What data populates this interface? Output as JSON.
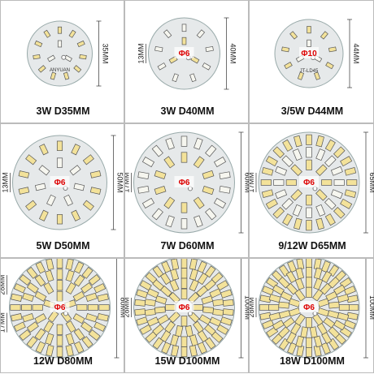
{
  "panels": [
    {
      "caption": "3W D35MM",
      "board_text": "ANYUAN",
      "left_dims": [],
      "right_dim": "35MM"
    },
    {
      "caption": "3W D40MM",
      "hole": "Φ6",
      "left_dims": [
        "13MM"
      ],
      "right_dim": "40MM"
    },
    {
      "caption": "3/5W D44MM",
      "hole": "Φ10",
      "board_text": "JT-LD45",
      "left_dims": [],
      "right_dim": "44MM"
    },
    {
      "caption": "5W D50MM",
      "hole": "Φ6",
      "left_dims": [
        "13MM"
      ],
      "right_dim": "50MM"
    },
    {
      "caption": "7W D60MM",
      "hole": "Φ6",
      "left_dims": [
        "17MM"
      ],
      "right_dim": "60MM"
    },
    {
      "caption": "9/12W D65MM",
      "hole": "Φ6",
      "left_dims": [
        "17MM"
      ],
      "right_dim": "65MM"
    },
    {
      "caption": "12W D80MM",
      "hole": "Φ6",
      "left_dims": [
        "28MM",
        "17MM"
      ],
      "right_dim": "80MM"
    },
    {
      "caption": "15W D100MM",
      "hole": "Φ6",
      "left_dims": [
        "28MM"
      ],
      "right_dim": "100MM"
    },
    {
      "caption": "18W D100MM",
      "hole": "Φ6",
      "left_dims": [
        "28MM"
      ],
      "right_dim": "100MM"
    }
  ]
}
